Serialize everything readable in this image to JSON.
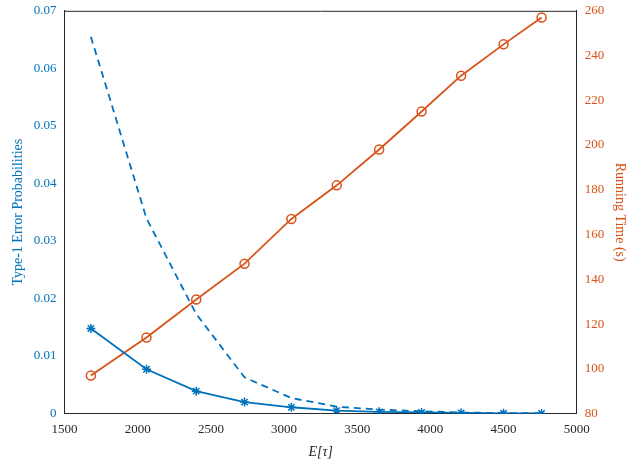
{
  "chart_data": {
    "type": "line",
    "x_label": "E[τ]",
    "y_label": "Type-1 Error Probabilities",
    "y2_label": "Running Time (s)",
    "x": [
      1680,
      2060,
      2400,
      2730,
      3050,
      3360,
      3650,
      3940,
      4210,
      4500,
      4760
    ],
    "xlim": [
      1500,
      5000
    ],
    "xticks": [
      1500,
      2000,
      2500,
      3000,
      3500,
      4000,
      4500,
      5000
    ],
    "ylim": [
      0,
      0.07
    ],
    "yticks": [
      0,
      0.01,
      0.02,
      0.03,
      0.04,
      0.05,
      0.06,
      0.07
    ],
    "y2lim": [
      80,
      260
    ],
    "y2ticks": [
      80,
      100,
      120,
      140,
      160,
      180,
      200,
      220,
      240,
      260
    ],
    "grid": false,
    "series": [
      {
        "color": "#0072bd",
        "line_style": "solid",
        "marker": "asterisk",
        "axis": "y",
        "values": [
          0.0148,
          0.0077,
          0.0039,
          0.002,
          0.0011,
          0.0005,
          0.0003,
          0.0002,
          0.0001,
          5e-05,
          3e-05
        ]
      },
      {
        "color": "#0072bd",
        "line_style": "dashed",
        "marker": "none",
        "axis": "y",
        "values": [
          0.0655,
          0.0339,
          0.0173,
          0.0063,
          0.0027,
          0.0012,
          0.0007,
          0.0004,
          0.0002,
          0.0001,
          5e-05
        ]
      },
      {
        "color": "#d95319",
        "line_style": "solid",
        "marker": "circle",
        "axis": "y2",
        "values": [
          97,
          114,
          131,
          147,
          167,
          182,
          198,
          215,
          231,
          245,
          257
        ]
      }
    ]
  }
}
